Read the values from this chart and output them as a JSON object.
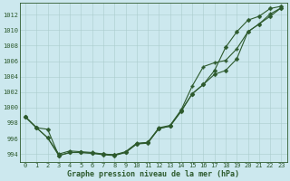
{
  "xlabel": "Graphe pression niveau de la mer (hPa)",
  "bg_color": "#cce8ee",
  "grid_color": "#aacccc",
  "line_color": "#2d5a2d",
  "xlim_min": -0.5,
  "xlim_max": 23.5,
  "ylim_min": 993.0,
  "ylim_max": 1013.5,
  "xticks": [
    0,
    1,
    2,
    3,
    4,
    5,
    6,
    7,
    8,
    9,
    10,
    11,
    12,
    13,
    14,
    15,
    16,
    17,
    18,
    19,
    20,
    21,
    22,
    23
  ],
  "yticks": [
    994,
    996,
    998,
    1000,
    1002,
    1004,
    1006,
    1008,
    1010,
    1012
  ],
  "line1_y": [
    998.8,
    997.4,
    997.2,
    993.8,
    994.2,
    994.2,
    994.1,
    994.0,
    993.9,
    994.2,
    995.3,
    995.5,
    997.3,
    997.6,
    999.6,
    1001.8,
    1003.0,
    1004.8,
    1007.8,
    1009.8,
    1011.3,
    1011.8,
    1012.8,
    1013.1
  ],
  "line2_y": [
    998.8,
    997.4,
    996.1,
    994.0,
    994.4,
    994.3,
    994.2,
    994.0,
    993.9,
    994.3,
    995.4,
    995.5,
    997.4,
    997.7,
    999.7,
    1002.8,
    1005.3,
    1005.8,
    1006.1,
    1007.6,
    1009.8,
    1010.8,
    1012.1,
    1012.9
  ],
  "line3_y": [
    998.8,
    997.4,
    996.1,
    993.8,
    994.2,
    994.2,
    994.1,
    993.9,
    993.8,
    994.2,
    995.3,
    995.4,
    997.3,
    997.6,
    999.5,
    1001.8,
    1003.0,
    1004.3,
    1004.8,
    1006.3,
    1009.8,
    1010.8,
    1011.8,
    1012.9
  ],
  "tick_fontsize": 5,
  "xlabel_fontsize": 6,
  "marker_size": 2.5,
  "linewidth": 0.8
}
